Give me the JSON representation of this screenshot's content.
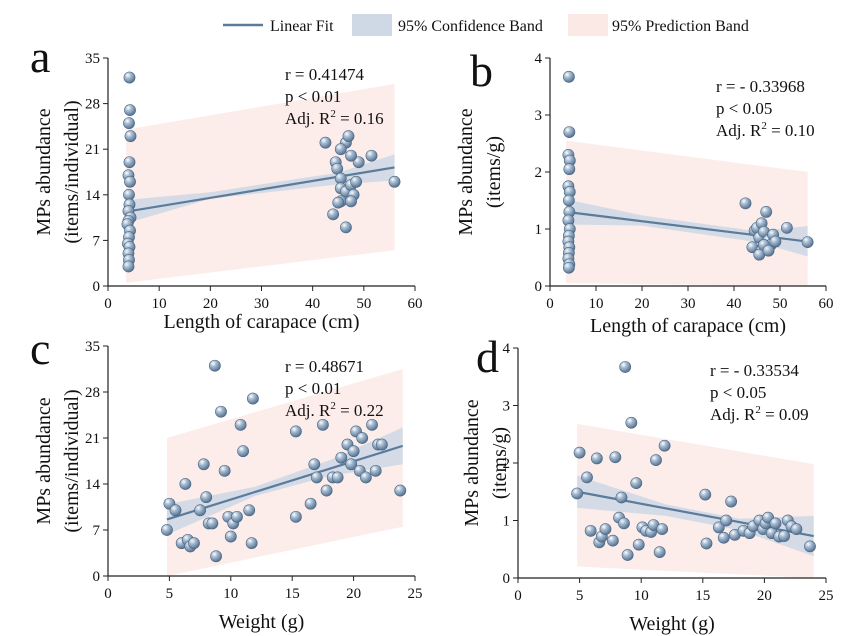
{
  "legend": {
    "fit_label": "Linear Fit",
    "confidence_label": "95% Confidence Band",
    "prediction_label": "95% Prediction Band",
    "fit_color": "#5b7b9b",
    "confidence_color": "#cfd9e6",
    "prediction_color": "#fbe9e6",
    "point_color": "#7f9ab5"
  },
  "chart_data": [
    {
      "type": "scatter",
      "panel_label": "a",
      "xlabel": "Length of carapace (cm)",
      "ylabel_line1": "MPs abundance",
      "ylabel_line2": "(items/individual)",
      "xlim": [
        0,
        60
      ],
      "ylim": [
        0,
        35
      ],
      "xticks": [
        0,
        10,
        20,
        30,
        40,
        50,
        60
      ],
      "yticks": [
        0,
        7,
        14,
        21,
        28,
        35
      ],
      "xtick_labels": [
        "0",
        "10",
        "20",
        "30",
        "40",
        "50",
        "60"
      ],
      "ytick_labels": [
        "0",
        "7",
        "14",
        "21",
        "28",
        "35"
      ],
      "stats": {
        "r": "r = 0.41474",
        "p": "p < 0.01",
        "adj_prefix": "Adj. R",
        "adj_sup": "2",
        "adj_value": " = 0.16"
      },
      "fit": {
        "x0": 3.5,
        "y0": 11.4,
        "x1": 56,
        "y1": 18.2
      },
      "confidence": {
        "lower": [
          [
            3.5,
            9.6
          ],
          [
            20,
            13.4
          ],
          [
            45,
            15.6
          ],
          [
            56,
            16.2
          ]
        ],
        "upper": [
          [
            3.5,
            13.2
          ],
          [
            20,
            14.4
          ],
          [
            45,
            17.4
          ],
          [
            56,
            20.2
          ]
        ]
      },
      "prediction": {
        "lower": [
          [
            3.5,
            0.5
          ],
          [
            56,
            5.5
          ]
        ],
        "upper": [
          [
            3.5,
            24.0
          ],
          [
            56,
            31.0
          ]
        ]
      },
      "points": [
        [
          4.2,
          32
        ],
        [
          4.3,
          27
        ],
        [
          4.1,
          25
        ],
        [
          4.4,
          23
        ],
        [
          4.2,
          19
        ],
        [
          4.0,
          17
        ],
        [
          4.3,
          16
        ],
        [
          4.1,
          14
        ],
        [
          4.2,
          12.5
        ],
        [
          4.0,
          11.5
        ],
        [
          4.4,
          10.5
        ],
        [
          4.0,
          10
        ],
        [
          3.8,
          9.5
        ],
        [
          4.3,
          8.5
        ],
        [
          4.1,
          7.5
        ],
        [
          3.9,
          6.5
        ],
        [
          4.2,
          6
        ],
        [
          4.0,
          5
        ],
        [
          4.1,
          4
        ],
        [
          4.0,
          3
        ],
        [
          42.5,
          22
        ],
        [
          44.5,
          19
        ],
        [
          44.8,
          18
        ],
        [
          45.5,
          16.5
        ],
        [
          45.5,
          15
        ],
        [
          46.5,
          14.5
        ],
        [
          47.5,
          15.5
        ],
        [
          48,
          14
        ],
        [
          48.5,
          16
        ],
        [
          49,
          19
        ],
        [
          45.5,
          13
        ],
        [
          47.5,
          13
        ],
        [
          44,
          11
        ],
        [
          46.5,
          9
        ],
        [
          46.5,
          22
        ],
        [
          47.5,
          20
        ],
        [
          51.5,
          20
        ],
        [
          56,
          16
        ],
        [
          45.5,
          21
        ],
        [
          47,
          23
        ],
        [
          45,
          12.8
        ]
      ]
    },
    {
      "type": "scatter",
      "panel_label": "b",
      "xlabel": "Length of carapace (cm)",
      "ylabel_line1": "MPs abundance",
      "ylabel_line2": "(items/g)",
      "xlim": [
        0,
        60
      ],
      "ylim": [
        0,
        4
      ],
      "xticks": [
        0,
        10,
        20,
        30,
        40,
        50,
        60
      ],
      "yticks": [
        0,
        1,
        2,
        3,
        4
      ],
      "xtick_labels": [
        "0",
        "10",
        "20",
        "30",
        "40",
        "50",
        "60"
      ],
      "ytick_labels": [
        "0",
        "1",
        "2",
        "3",
        "4"
      ],
      "stats": {
        "r": "r = - 0.33968",
        "p": "p < 0.05",
        "adj_prefix": "Adj. R",
        "adj_sup": "2",
        "adj_value": " = 0.10"
      },
      "fit": {
        "x0": 3.5,
        "y0": 1.3,
        "x1": 56,
        "y1": 0.78
      },
      "confidence": {
        "lower": [
          [
            3.5,
            1.08
          ],
          [
            20,
            1.06
          ],
          [
            45,
            0.77
          ],
          [
            56,
            0.52
          ]
        ],
        "upper": [
          [
            3.5,
            1.52
          ],
          [
            20,
            1.24
          ],
          [
            45,
            0.96
          ],
          [
            56,
            1.05
          ]
        ]
      },
      "prediction": {
        "lower": [
          [
            3.5,
            0.05
          ],
          [
            56,
            0.0
          ]
        ],
        "upper": [
          [
            3.5,
            2.55
          ],
          [
            56,
            2.0
          ]
        ]
      },
      "points": [
        [
          4.1,
          3.67
        ],
        [
          4.2,
          2.7
        ],
        [
          4.0,
          2.3
        ],
        [
          4.3,
          2.2
        ],
        [
          4.2,
          2.05
        ],
        [
          4.0,
          1.75
        ],
        [
          4.3,
          1.65
        ],
        [
          4.1,
          1.5
        ],
        [
          4.2,
          1.3
        ],
        [
          4.0,
          1.15
        ],
        [
          4.3,
          1.0
        ],
        [
          4.1,
          0.88
        ],
        [
          4.0,
          0.78
        ],
        [
          4.2,
          0.68
        ],
        [
          4.1,
          0.58
        ],
        [
          4.0,
          0.48
        ],
        [
          4.2,
          0.38
        ],
        [
          4.1,
          0.32
        ],
        [
          42.5,
          1.45
        ],
        [
          44,
          0.68
        ],
        [
          44.5,
          0.97
        ],
        [
          45,
          1.02
        ],
        [
          45.5,
          0.85
        ],
        [
          46,
          1.1
        ],
        [
          46.5,
          0.95
        ],
        [
          47,
          1.3
        ],
        [
          47.5,
          0.8
        ],
        [
          46,
          0.62
        ],
        [
          45.5,
          0.55
        ],
        [
          48,
          0.72
        ],
        [
          48.5,
          0.9
        ],
        [
          49,
          0.78
        ],
        [
          51.5,
          1.02
        ],
        [
          56,
          0.77
        ],
        [
          46.5,
          0.72
        ],
        [
          47.5,
          0.62
        ]
      ]
    },
    {
      "type": "scatter",
      "panel_label": "c",
      "xlabel": "Weight (g)",
      "ylabel_line1": "MPs abundance",
      "ylabel_line2": "(items/individual)",
      "xlim": [
        0,
        25
      ],
      "ylim": [
        0,
        35
      ],
      "xticks": [
        0,
        5,
        10,
        15,
        20,
        25
      ],
      "yticks": [
        0,
        7,
        14,
        21,
        28,
        35
      ],
      "xtick_labels": [
        "0",
        "5",
        "10",
        "15",
        "20",
        "25"
      ],
      "ytick_labels": [
        "0",
        "7",
        "14",
        "21",
        "28",
        "35"
      ],
      "stats": {
        "r": "r = 0.48671",
        "p": "p < 0.01",
        "adj_prefix": "Adj. R",
        "adj_sup": "2",
        "adj_value": " = 0.22"
      },
      "fit": {
        "x0": 4.8,
        "y0": 8.6,
        "x1": 24,
        "y1": 19.8
      },
      "confidence": {
        "lower": [
          [
            4.8,
            6.3
          ],
          [
            12,
            12.2
          ],
          [
            18,
            15.2
          ],
          [
            24,
            17.0
          ]
        ],
        "upper": [
          [
            4.8,
            10.9
          ],
          [
            12,
            13.6
          ],
          [
            18,
            17.6
          ],
          [
            24,
            22.6
          ]
        ]
      },
      "prediction": {
        "lower": [
          [
            4.8,
            -3.5
          ],
          [
            24,
            7.5
          ]
        ],
        "upper": [
          [
            4.8,
            21.0
          ],
          [
            24,
            31.5
          ]
        ]
      },
      "points": [
        [
          4.8,
          7
        ],
        [
          5.0,
          11
        ],
        [
          5.5,
          10
        ],
        [
          6.0,
          5
        ],
        [
          6.3,
          14
        ],
        [
          6.5,
          5.5
        ],
        [
          6.7,
          4.5
        ],
        [
          7.0,
          5
        ],
        [
          7.5,
          10
        ],
        [
          7.8,
          17
        ],
        [
          8.0,
          12
        ],
        [
          8.2,
          8
        ],
        [
          8.5,
          8
        ],
        [
          8.7,
          32
        ],
        [
          8.8,
          3
        ],
        [
          9.2,
          25
        ],
        [
          9.5,
          16
        ],
        [
          9.8,
          9
        ],
        [
          10.0,
          6
        ],
        [
          10.2,
          8
        ],
        [
          10.5,
          9
        ],
        [
          10.8,
          23
        ],
        [
          11.0,
          19
        ],
        [
          11.5,
          10
        ],
        [
          11.7,
          5
        ],
        [
          11.8,
          27
        ],
        [
          15.3,
          22
        ],
        [
          15.3,
          9
        ],
        [
          16.5,
          11
        ],
        [
          16.8,
          17
        ],
        [
          17.0,
          15
        ],
        [
          17.5,
          23
        ],
        [
          17.8,
          13
        ],
        [
          18.3,
          15
        ],
        [
          18.7,
          15
        ],
        [
          19.0,
          18
        ],
        [
          19.5,
          20
        ],
        [
          19.8,
          17
        ],
        [
          20.0,
          19
        ],
        [
          20.2,
          22
        ],
        [
          20.5,
          16
        ],
        [
          20.7,
          21
        ],
        [
          21.0,
          15
        ],
        [
          21.5,
          23
        ],
        [
          21.8,
          16
        ],
        [
          22.0,
          20
        ],
        [
          22.3,
          20
        ],
        [
          23.8,
          13
        ]
      ]
    },
    {
      "type": "scatter",
      "panel_label": "d",
      "xlabel": "Weight (g)",
      "ylabel_line1": "MPs abundance",
      "ylabel_line2": "(items/g)",
      "xlim": [
        0,
        25
      ],
      "ylim": [
        0,
        4
      ],
      "xticks": [
        0,
        5,
        10,
        15,
        20,
        25
      ],
      "yticks": [
        0,
        1,
        2,
        3,
        4
      ],
      "xtick_labels": [
        "0",
        "5",
        "10",
        "15",
        "20",
        "25"
      ],
      "ytick_labels": [
        "0",
        "1",
        "2",
        "3",
        "4"
      ],
      "stats": {
        "r": "r = - 0.33534",
        "p": "p < 0.05",
        "adj_prefix": "Adj. R",
        "adj_sup": "2",
        "adj_value": " = 0.09"
      },
      "fit": {
        "x0": 4.8,
        "y0": 1.5,
        "x1": 24,
        "y1": 0.73
      },
      "confidence": {
        "lower": [
          [
            4.8,
            1.22
          ],
          [
            12,
            1.08
          ],
          [
            18,
            0.83
          ],
          [
            24,
            0.38
          ]
        ],
        "upper": [
          [
            4.8,
            1.78
          ],
          [
            12,
            1.28
          ],
          [
            18,
            1.03
          ],
          [
            24,
            1.08
          ]
        ]
      },
      "prediction": {
        "lower": [
          [
            4.8,
            0.2
          ],
          [
            24,
            -0.35
          ]
        ],
        "upper": [
          [
            4.8,
            2.68
          ],
          [
            24,
            1.98
          ]
        ]
      },
      "points": [
        [
          4.8,
          1.47
        ],
        [
          5.0,
          2.18
        ],
        [
          5.6,
          1.75
        ],
        [
          5.9,
          0.82
        ],
        [
          6.4,
          2.08
        ],
        [
          6.6,
          0.62
        ],
        [
          6.8,
          0.72
        ],
        [
          7.1,
          0.85
        ],
        [
          7.7,
          0.65
        ],
        [
          7.9,
          2.1
        ],
        [
          8.2,
          1.05
        ],
        [
          8.4,
          1.4
        ],
        [
          8.6,
          0.95
        ],
        [
          8.7,
          3.67
        ],
        [
          8.9,
          0.4
        ],
        [
          9.2,
          2.7
        ],
        [
          9.6,
          1.65
        ],
        [
          9.8,
          0.58
        ],
        [
          10.1,
          0.88
        ],
        [
          10.4,
          0.82
        ],
        [
          10.8,
          0.8
        ],
        [
          11.0,
          0.92
        ],
        [
          11.2,
          2.05
        ],
        [
          11.5,
          0.45
        ],
        [
          11.7,
          0.85
        ],
        [
          11.9,
          2.3
        ],
        [
          15.2,
          1.45
        ],
        [
          15.3,
          0.6
        ],
        [
          16.3,
          0.88
        ],
        [
          16.7,
          0.7
        ],
        [
          16.9,
          1.0
        ],
        [
          17.3,
          1.33
        ],
        [
          17.6,
          0.75
        ],
        [
          18.3,
          0.82
        ],
        [
          18.8,
          0.78
        ],
        [
          19.1,
          0.9
        ],
        [
          19.6,
          1.0
        ],
        [
          19.9,
          0.85
        ],
        [
          20.1,
          0.95
        ],
        [
          20.3,
          1.05
        ],
        [
          20.6,
          0.78
        ],
        [
          20.9,
          0.95
        ],
        [
          21.2,
          0.72
        ],
        [
          21.6,
          0.73
        ],
        [
          21.9,
          1.0
        ],
        [
          22.2,
          0.9
        ],
        [
          22.6,
          0.85
        ],
        [
          23.7,
          0.55
        ]
      ]
    }
  ]
}
